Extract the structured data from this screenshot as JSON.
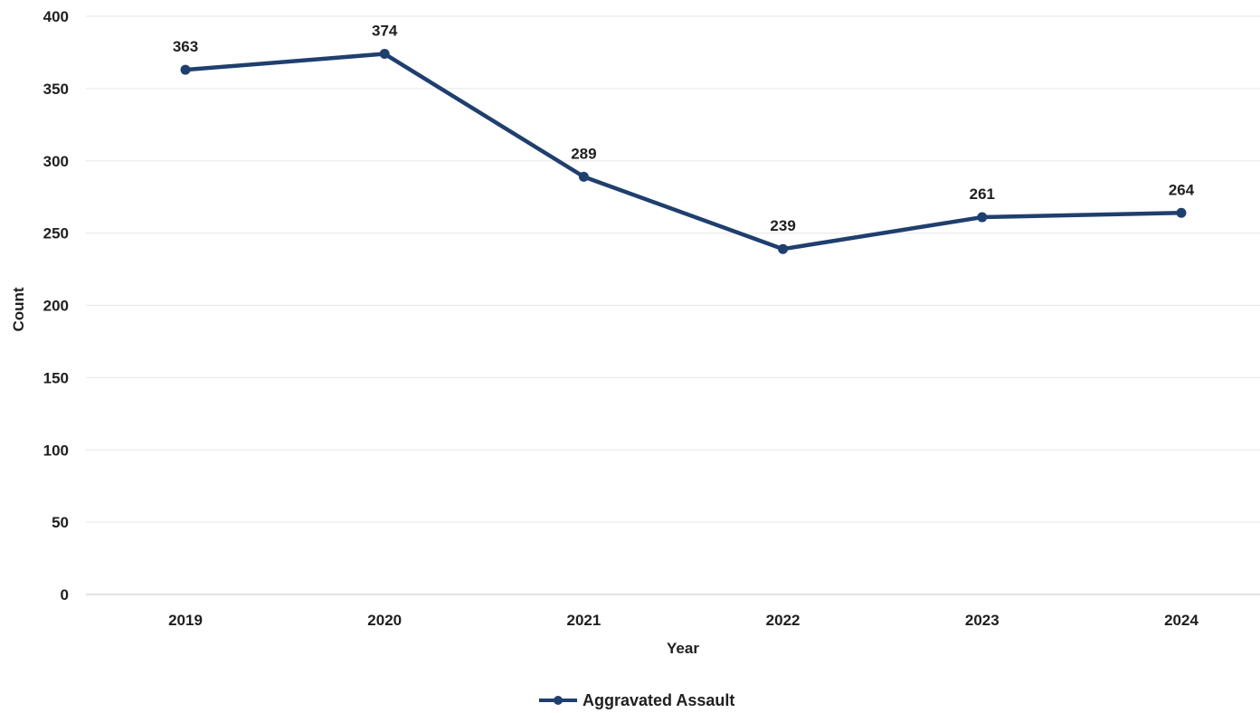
{
  "chart_data": {
    "type": "line",
    "title": "",
    "xlabel": "Year",
    "ylabel": "Count",
    "categories": [
      "2019",
      "2020",
      "2021",
      "2022",
      "2023",
      "2024"
    ],
    "ylim": [
      0,
      400
    ],
    "yticks": [
      0,
      50,
      100,
      150,
      200,
      250,
      300,
      350,
      400
    ],
    "grid": true,
    "legend_position": "bottom",
    "series": [
      {
        "name": "Aggravated Assault",
        "values": [
          363,
          374,
          289,
          239,
          261,
          264
        ],
        "data_labels": [
          "363",
          "374",
          "289",
          "239",
          "261",
          "264"
        ],
        "color": "#1f3f6e"
      }
    ]
  }
}
